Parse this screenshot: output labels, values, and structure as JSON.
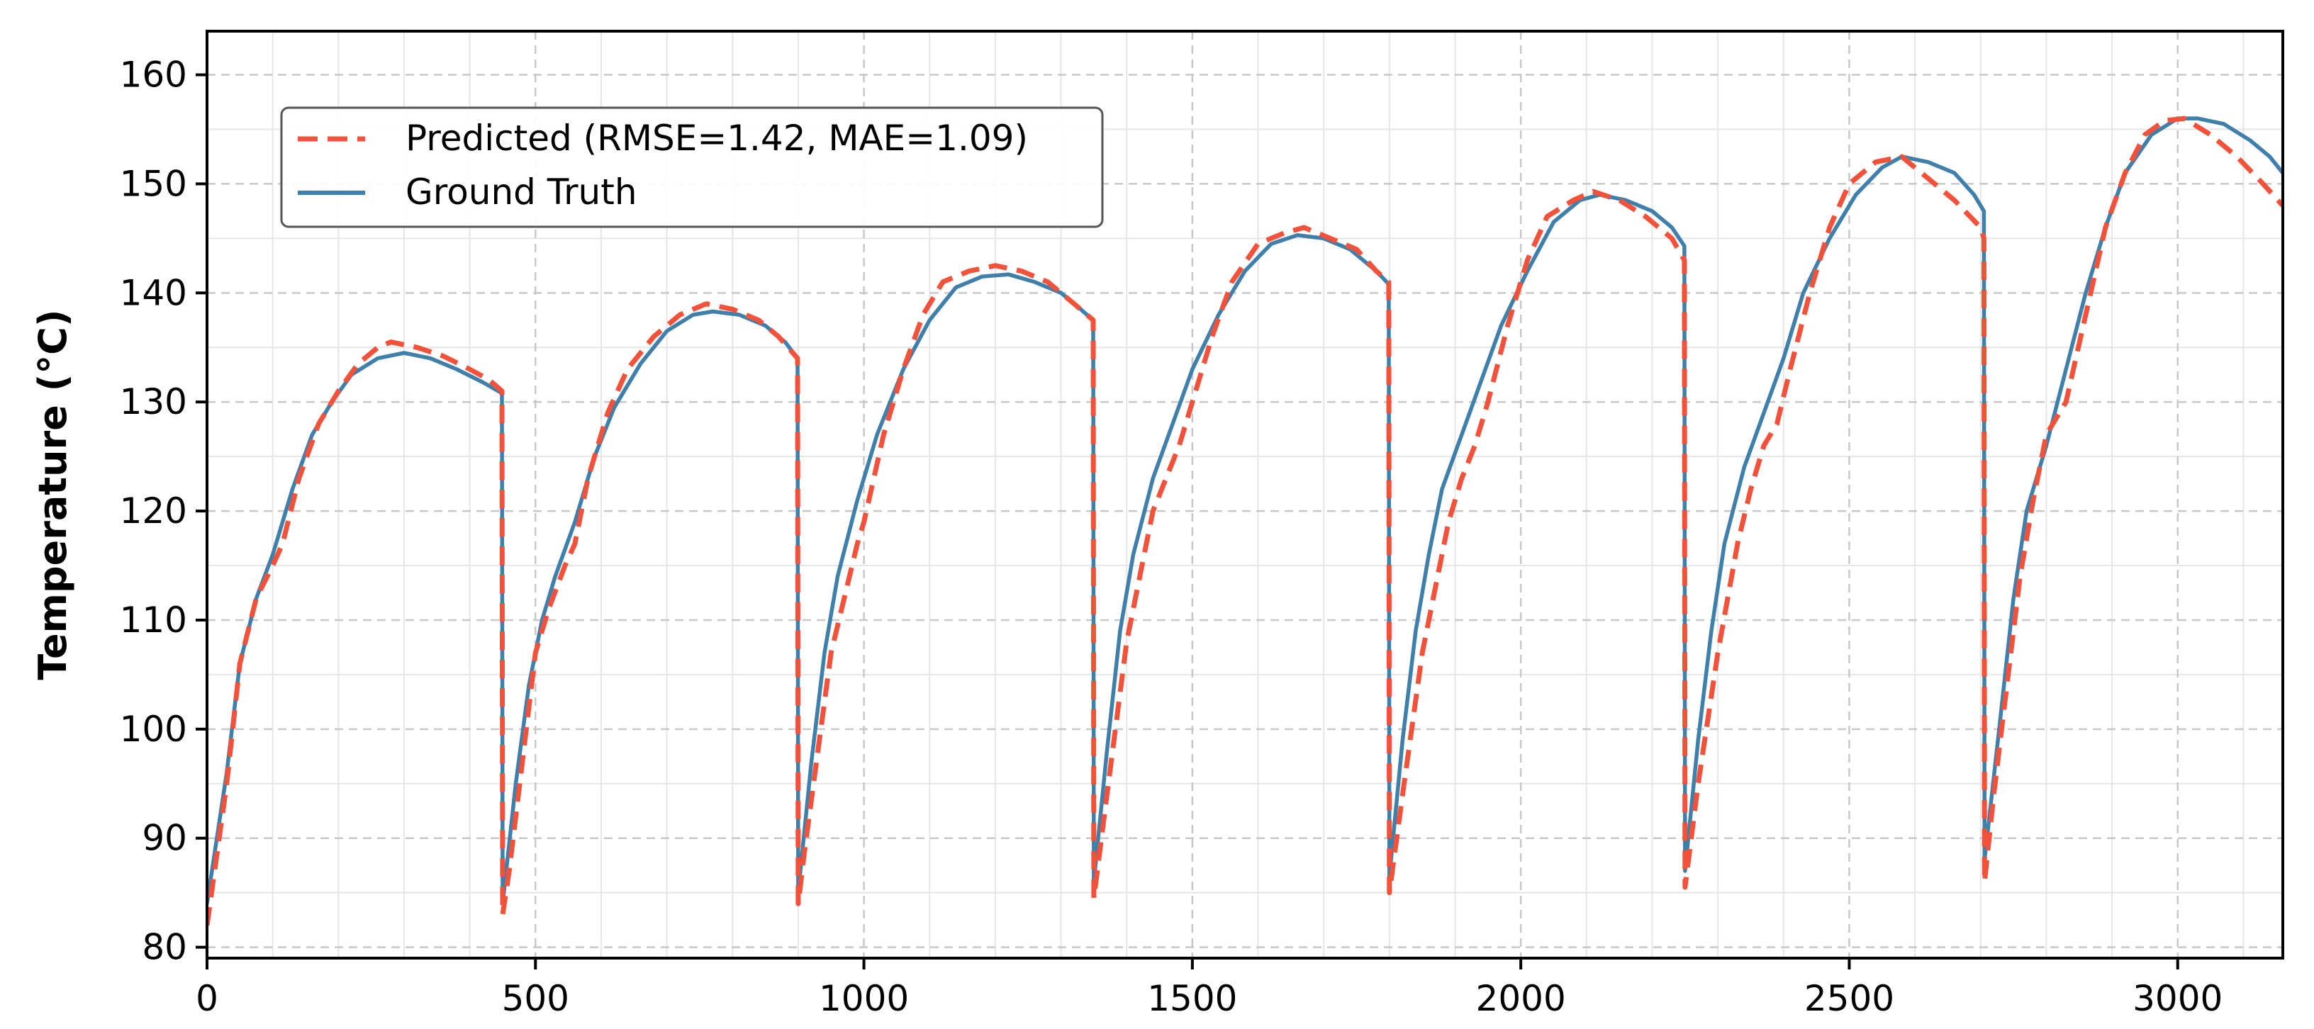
{
  "chart_data": {
    "type": "line",
    "title": "",
    "xlabel": "",
    "ylabel": "Temperature (°C)",
    "xlim": [
      0,
      3160
    ],
    "ylim": [
      79,
      164
    ],
    "xticks": [
      0,
      500,
      1000,
      1500,
      2000,
      2500,
      3000
    ],
    "yticks": [
      80,
      90,
      100,
      110,
      120,
      130,
      140,
      150,
      160
    ],
    "x_minor_step": 100,
    "y_minor_step": 5,
    "grid": true,
    "legend_position": "upper-left",
    "series": [
      {
        "name": "Predicted (RMSE=1.42, MAE=1.09)",
        "color": "#f4513a",
        "style": "dashed",
        "points": [
          [
            0,
            82
          ],
          [
            30,
            95
          ],
          [
            50,
            106
          ],
          [
            75,
            112
          ],
          [
            100,
            115
          ],
          [
            115,
            117
          ],
          [
            140,
            123
          ],
          [
            170,
            128
          ],
          [
            200,
            131
          ],
          [
            230,
            133.5
          ],
          [
            260,
            135
          ],
          [
            280,
            135.5
          ],
          [
            320,
            135
          ],
          [
            360,
            134.2
          ],
          [
            400,
            133
          ],
          [
            430,
            132
          ],
          [
            449,
            131
          ],
          [
            450,
            83
          ],
          [
            460,
            87
          ],
          [
            470,
            92
          ],
          [
            480,
            97
          ],
          [
            490,
            102
          ],
          [
            500,
            107
          ],
          [
            520,
            111
          ],
          [
            545,
            115
          ],
          [
            560,
            117
          ],
          [
            580,
            123
          ],
          [
            610,
            129
          ],
          [
            640,
            133
          ],
          [
            680,
            136
          ],
          [
            720,
            138
          ],
          [
            760,
            139
          ],
          [
            800,
            138.5
          ],
          [
            840,
            137.5
          ],
          [
            870,
            136
          ],
          [
            899,
            134
          ],
          [
            900,
            84
          ],
          [
            910,
            89
          ],
          [
            930,
            98
          ],
          [
            950,
            107
          ],
          [
            970,
            112
          ],
          [
            990,
            117
          ],
          [
            1000,
            119
          ],
          [
            1030,
            127
          ],
          [
            1060,
            133
          ],
          [
            1090,
            138
          ],
          [
            1120,
            141
          ],
          [
            1160,
            142
          ],
          [
            1200,
            142.5
          ],
          [
            1240,
            142
          ],
          [
            1280,
            141
          ],
          [
            1320,
            139
          ],
          [
            1349,
            137.5
          ],
          [
            1350,
            84.5
          ],
          [
            1370,
            94
          ],
          [
            1400,
            108
          ],
          [
            1420,
            114
          ],
          [
            1440,
            120
          ],
          [
            1460,
            123
          ],
          [
            1480,
            126
          ],
          [
            1500,
            130
          ],
          [
            1530,
            136
          ],
          [
            1560,
            141
          ],
          [
            1600,
            144.5
          ],
          [
            1640,
            145.5
          ],
          [
            1670,
            146
          ],
          [
            1710,
            145
          ],
          [
            1750,
            144
          ],
          [
            1780,
            142
          ],
          [
            1799,
            141
          ],
          [
            1800,
            85
          ],
          [
            1820,
            94
          ],
          [
            1850,
            107
          ],
          [
            1870,
            113
          ],
          [
            1890,
            119
          ],
          [
            1910,
            123
          ],
          [
            1930,
            126
          ],
          [
            1950,
            130
          ],
          [
            1980,
            137
          ],
          [
            2010,
            143
          ],
          [
            2040,
            147
          ],
          [
            2080,
            148.5
          ],
          [
            2110,
            149.3
          ],
          [
            2150,
            148.5
          ],
          [
            2190,
            147
          ],
          [
            2230,
            145
          ],
          [
            2249,
            143
          ],
          [
            2250,
            85.5
          ],
          [
            2270,
            95
          ],
          [
            2300,
            107
          ],
          [
            2330,
            117
          ],
          [
            2350,
            122
          ],
          [
            2370,
            126
          ],
          [
            2390,
            128
          ],
          [
            2410,
            133
          ],
          [
            2440,
            140
          ],
          [
            2470,
            146
          ],
          [
            2500,
            150
          ],
          [
            2540,
            152
          ],
          [
            2580,
            152.5
          ],
          [
            2620,
            150.5
          ],
          [
            2660,
            148.5
          ],
          [
            2700,
            146
          ],
          [
            2705,
            145
          ],
          [
            2706,
            86
          ],
          [
            2720,
            94
          ],
          [
            2740,
            104
          ],
          [
            2760,
            114
          ],
          [
            2780,
            121
          ],
          [
            2800,
            127
          ],
          [
            2830,
            130
          ],
          [
            2860,
            138
          ],
          [
            2890,
            146
          ],
          [
            2920,
            151
          ],
          [
            2950,
            154.5
          ],
          [
            2980,
            155.8
          ],
          [
            3010,
            156
          ],
          [
            3050,
            154.5
          ],
          [
            3090,
            152.5
          ],
          [
            3130,
            150
          ],
          [
            3160,
            148
          ]
        ]
      },
      {
        "name": "Ground Truth",
        "color": "#3f7fab",
        "style": "solid",
        "points": [
          [
            0,
            84
          ],
          [
            30,
            96
          ],
          [
            50,
            106
          ],
          [
            75,
            112
          ],
          [
            100,
            116
          ],
          [
            130,
            122
          ],
          [
            160,
            127
          ],
          [
            190,
            130
          ],
          [
            220,
            132.5
          ],
          [
            260,
            134
          ],
          [
            300,
            134.5
          ],
          [
            340,
            134
          ],
          [
            380,
            133
          ],
          [
            420,
            131.8
          ],
          [
            449,
            130.8
          ],
          [
            450,
            84
          ],
          [
            470,
            95
          ],
          [
            490,
            104
          ],
          [
            510,
            110
          ],
          [
            530,
            114
          ],
          [
            560,
            119
          ],
          [
            590,
            125
          ],
          [
            620,
            129.5
          ],
          [
            660,
            133.5
          ],
          [
            700,
            136.5
          ],
          [
            740,
            138
          ],
          [
            770,
            138.3
          ],
          [
            810,
            138
          ],
          [
            850,
            137
          ],
          [
            880,
            135.5
          ],
          [
            899,
            134
          ],
          [
            900,
            85
          ],
          [
            920,
            97
          ],
          [
            940,
            107
          ],
          [
            960,
            114
          ],
          [
            990,
            121
          ],
          [
            1020,
            127
          ],
          [
            1060,
            133
          ],
          [
            1100,
            137.5
          ],
          [
            1140,
            140.5
          ],
          [
            1180,
            141.5
          ],
          [
            1220,
            141.7
          ],
          [
            1260,
            141
          ],
          [
            1300,
            140
          ],
          [
            1330,
            138.5
          ],
          [
            1349,
            137.5
          ],
          [
            1350,
            86
          ],
          [
            1370,
            98
          ],
          [
            1390,
            109
          ],
          [
            1410,
            116
          ],
          [
            1440,
            123
          ],
          [
            1470,
            128
          ],
          [
            1500,
            133
          ],
          [
            1540,
            138
          ],
          [
            1580,
            142
          ],
          [
            1620,
            144.5
          ],
          [
            1660,
            145.3
          ],
          [
            1700,
            145
          ],
          [
            1740,
            144
          ],
          [
            1780,
            142
          ],
          [
            1799,
            140.8
          ],
          [
            1800,
            86.5
          ],
          [
            1820,
            99
          ],
          [
            1840,
            109
          ],
          [
            1860,
            116
          ],
          [
            1880,
            122
          ],
          [
            1910,
            127
          ],
          [
            1940,
            132
          ],
          [
            1970,
            137
          ],
          [
            2010,
            142
          ],
          [
            2050,
            146.5
          ],
          [
            2090,
            148.5
          ],
          [
            2120,
            149
          ],
          [
            2160,
            148.5
          ],
          [
            2200,
            147.5
          ],
          [
            2230,
            146
          ],
          [
            2249,
            144.3
          ],
          [
            2250,
            87
          ],
          [
            2270,
            99
          ],
          [
            2290,
            109
          ],
          [
            2310,
            117
          ],
          [
            2340,
            124
          ],
          [
            2370,
            129
          ],
          [
            2400,
            134
          ],
          [
            2430,
            140
          ],
          [
            2470,
            145
          ],
          [
            2510,
            149
          ],
          [
            2550,
            151.5
          ],
          [
            2580,
            152.5
          ],
          [
            2620,
            152
          ],
          [
            2660,
            151
          ],
          [
            2690,
            149
          ],
          [
            2705,
            147.5
          ],
          [
            2706,
            88
          ],
          [
            2730,
            101
          ],
          [
            2750,
            112
          ],
          [
            2770,
            120
          ],
          [
            2800,
            126
          ],
          [
            2830,
            133
          ],
          [
            2860,
            140
          ],
          [
            2890,
            146
          ],
          [
            2920,
            151
          ],
          [
            2960,
            154.5
          ],
          [
            3000,
            156
          ],
          [
            3030,
            156
          ],
          [
            3070,
            155.5
          ],
          [
            3110,
            154
          ],
          [
            3140,
            152.5
          ],
          [
            3160,
            151
          ]
        ]
      }
    ]
  }
}
